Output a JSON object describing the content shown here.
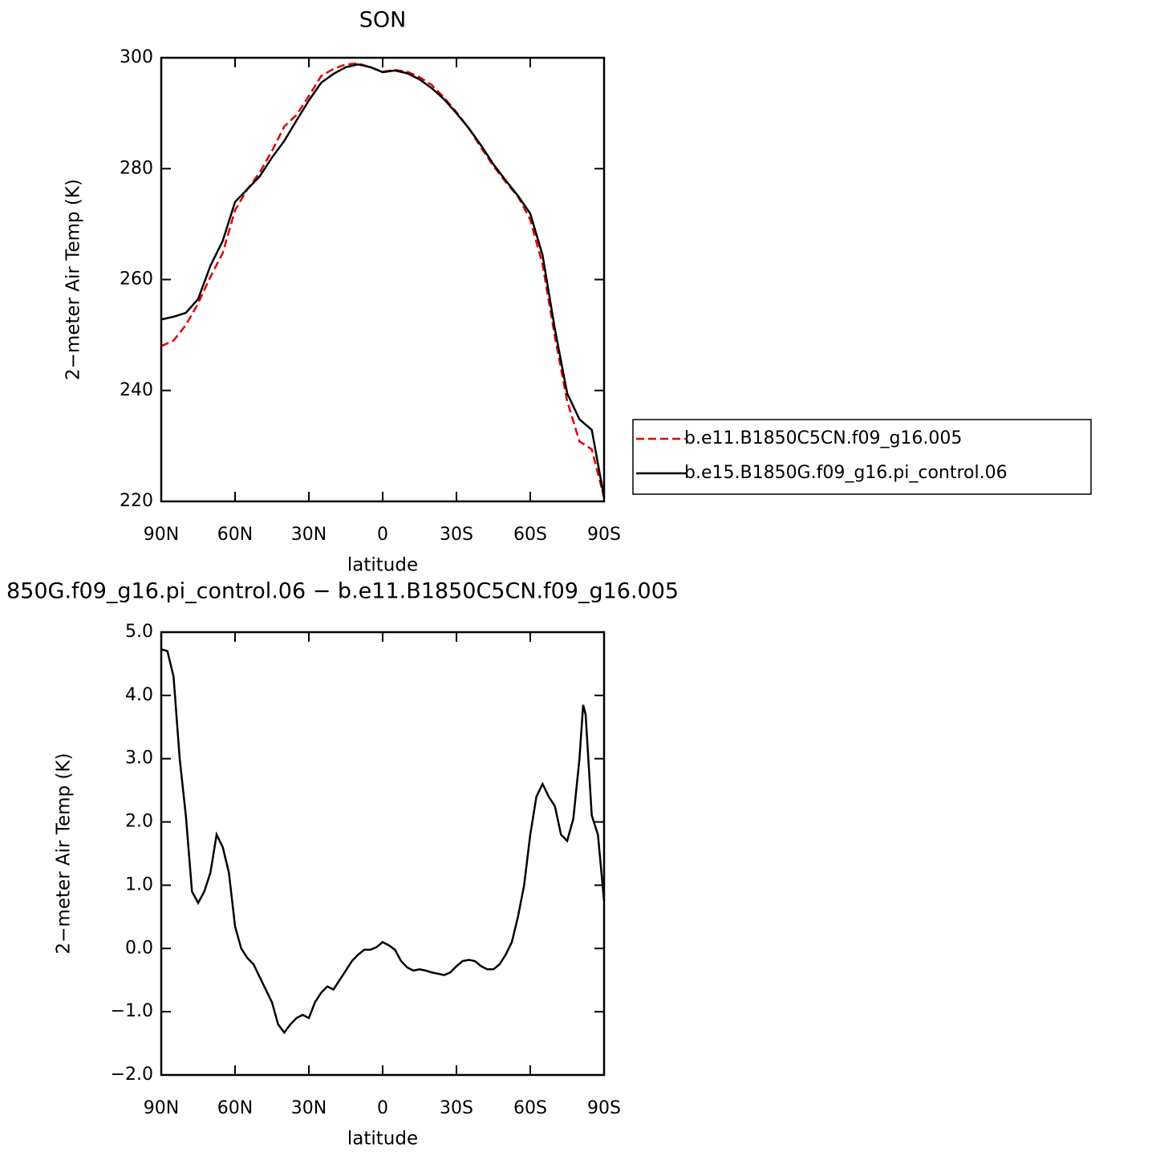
{
  "chart_data": [
    {
      "type": "line",
      "title": "SON",
      "ylabel": "2−meter Air Temp (K)",
      "xlabel": "latitude",
      "x": [
        90,
        85,
        80,
        75,
        70,
        65,
        60,
        55,
        50,
        45,
        40,
        35,
        30,
        25,
        20,
        15,
        10,
        5,
        0,
        -5,
        -10,
        -15,
        -20,
        -25,
        -30,
        -35,
        -40,
        -45,
        -50,
        -55,
        -60,
        -65,
        -70,
        -75,
        -80,
        -85,
        -90
      ],
      "xlim": [
        90,
        -90
      ],
      "xticks": [
        {
          "value": 90,
          "label": "90N"
        },
        {
          "value": 60,
          "label": "60N"
        },
        {
          "value": 30,
          "label": "30N"
        },
        0,
        {
          "value": -30,
          "label": "30S"
        },
        {
          "value": -60,
          "label": "60S"
        },
        {
          "value": -90,
          "label": "90S"
        }
      ],
      "ylim": [
        220,
        300
      ],
      "yticks": [
        220,
        240,
        260,
        280,
        300
      ],
      "legend": "right",
      "series": [
        {
          "name": "b.e11.B1850C5CN.f09_g16.005",
          "color": "#e00000",
          "linestyle": "dashed",
          "values": [
            248,
            249,
            251.8,
            255.7,
            260.5,
            264.8,
            272.5,
            276.3,
            279.3,
            283.2,
            287.6,
            289.7,
            293.1,
            296.7,
            298,
            298.8,
            299,
            298.3,
            297.5,
            297.8,
            297.5,
            296.5,
            295.1,
            292.8,
            290.2,
            287.3,
            283.8,
            280.5,
            277.6,
            275,
            270.8,
            262.7,
            249.7,
            238.1,
            230.8,
            229.4,
            220.7
          ]
        },
        {
          "name": "b.e15.B1850G.f09_g16.pi_control.06",
          "color": "#000000",
          "linestyle": "solid",
          "values": [
            252.8,
            253.3,
            254,
            256.5,
            262.5,
            267,
            274,
            276.3,
            278.6,
            282,
            285,
            288.7,
            292.3,
            295.5,
            297.1,
            298.3,
            298.8,
            298.3,
            297.4,
            297.7,
            297.2,
            296.1,
            294.5,
            292.5,
            290,
            287.3,
            284.2,
            280.8,
            277.9,
            275.1,
            271.9,
            264.4,
            251.1,
            239.5,
            234.8,
            232.9,
            220.7
          ]
        }
      ]
    },
    {
      "type": "line",
      "title": "850G.f09_g16.pi_control.06 − b.e11.B1850C5CN.f09_g16.005",
      "ylabel": "2−meter Air Temp (K)",
      "xlabel": "latitude",
      "x": [
        90,
        87.5,
        85,
        82.5,
        80,
        77.5,
        75,
        72.5,
        70,
        67.5,
        65,
        62.5,
        60,
        57.5,
        55,
        52.5,
        50,
        47.5,
        45,
        42.5,
        40,
        37.5,
        35,
        32.5,
        30,
        27.5,
        25,
        22.5,
        20,
        17.5,
        15,
        12.5,
        10,
        7.5,
        5,
        2.5,
        0,
        -2.5,
        -5,
        -7.5,
        -10,
        -12.5,
        -15,
        -17.5,
        -20,
        -22.5,
        -25,
        -27.5,
        -30,
        -32.5,
        -35,
        -37.5,
        -40,
        -42.5,
        -45,
        -47.5,
        -50,
        -52.5,
        -55,
        -57.5,
        -60,
        -62.5,
        -65,
        -67.5,
        -70,
        -72.5,
        -75,
        -77.5,
        -80,
        -81.5,
        -82.5,
        -85,
        -87.5,
        -90
      ],
      "xlim": [
        90,
        -90
      ],
      "xticks": [
        {
          "value": 90,
          "label": "90N"
        },
        {
          "value": 60,
          "label": "60N"
        },
        {
          "value": 30,
          "label": "30N"
        },
        0,
        {
          "value": -30,
          "label": "30S"
        },
        {
          "value": -60,
          "label": "60S"
        },
        {
          "value": -90,
          "label": "90S"
        }
      ],
      "ylim": [
        -2,
        5
      ],
      "yticks": [
        {
          "value": -2,
          "label": "−2.0"
        },
        {
          "value": -1,
          "label": "−1.0"
        },
        {
          "value": 0,
          "label": "0.0"
        },
        {
          "value": 1,
          "label": "1.0"
        },
        {
          "value": 2,
          "label": "2.0"
        },
        {
          "value": 3,
          "label": "3.0"
        },
        {
          "value": 4,
          "label": "4.0"
        },
        {
          "value": 5,
          "label": "5.0"
        }
      ],
      "series": [
        {
          "color": "#000000",
          "linestyle": "solid",
          "values": [
            4.73,
            4.7,
            4.3,
            3.0,
            2.1,
            0.9,
            0.72,
            0.9,
            1.2,
            1.8,
            1.6,
            1.2,
            0.35,
            0.0,
            -0.15,
            -0.25,
            -0.45,
            -0.65,
            -0.85,
            -1.2,
            -1.33,
            -1.2,
            -1.1,
            -1.05,
            -1.1,
            -0.85,
            -0.7,
            -0.6,
            -0.65,
            -0.5,
            -0.35,
            -0.2,
            -0.1,
            -0.02,
            -0.02,
            0.02,
            0.1,
            0.05,
            -0.02,
            -0.2,
            -0.3,
            -0.35,
            -0.33,
            -0.35,
            -0.38,
            -0.4,
            -0.42,
            -0.38,
            -0.28,
            -0.2,
            -0.18,
            -0.2,
            -0.28,
            -0.33,
            -0.33,
            -0.25,
            -0.1,
            0.1,
            0.5,
            1.0,
            1.8,
            2.4,
            2.6,
            2.4,
            2.25,
            1.8,
            1.7,
            2.05,
            3.0,
            3.85,
            3.7,
            2.1,
            1.8,
            0.75
          ]
        }
      ]
    }
  ]
}
